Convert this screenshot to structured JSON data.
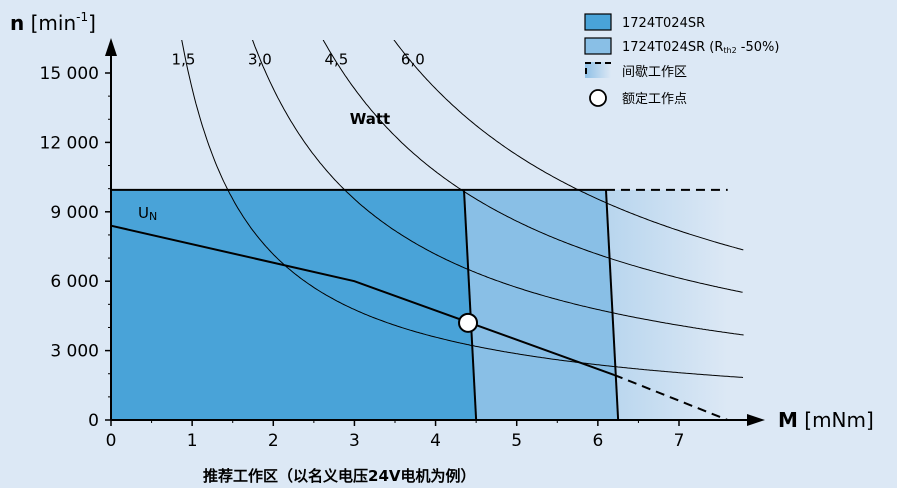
{
  "chart_data": {
    "type": "line",
    "x_axis": {
      "symbol": "M",
      "unit": "[mNm]",
      "min": 0,
      "max": 7.6,
      "ticks": [
        "0",
        "1",
        "2",
        "3",
        "4",
        "5",
        "6",
        "7"
      ]
    },
    "y_axis": {
      "symbol": "n",
      "unit_base": "[min",
      "unit_exp": "-1",
      "unit_close": "]",
      "min": 0,
      "max": 16000,
      "ticks": [
        {
          "value": 0,
          "label": "0"
        },
        {
          "value": 3000,
          "label": "3 000"
        },
        {
          "value": 6000,
          "label": "6 000"
        },
        {
          "value": 9000,
          "label": "9 000"
        },
        {
          "value": 12000,
          "label": "12 000"
        },
        {
          "value": 15000,
          "label": "15 000"
        }
      ]
    },
    "power_title": "Watt",
    "power_curves": [
      {
        "label": "1,5",
        "watts": 1.5
      },
      {
        "label": "3,0",
        "watts": 3.0
      },
      {
        "label": "4,5",
        "watts": 4.5
      },
      {
        "label": "6,0",
        "watts": 6.0
      }
    ],
    "regions": {
      "speed_limit": 9950,
      "continuous": [
        [
          0,
          0
        ],
        [
          0,
          9950
        ],
        [
          4.35,
          9950
        ],
        [
          4.5,
          0
        ]
      ],
      "extended": [
        [
          4.35,
          9950
        ],
        [
          6.1,
          9950
        ],
        [
          6.25,
          0
        ],
        [
          4.5,
          0
        ]
      ],
      "intermittent_extent": 7.6
    },
    "voltage_curve": {
      "label": "U",
      "label_sub": "N",
      "points": [
        [
          0,
          8400
        ],
        [
          3,
          6000
        ],
        [
          6.2,
          1950
        ]
      ],
      "dashed_extension": [
        [
          6.2,
          1950
        ],
        [
          7.6,
          0
        ]
      ]
    },
    "operating_point": {
      "x": 4.4,
      "y": 4200
    },
    "legend": [
      {
        "text": "1724T024SR",
        "color": "#49a3d8"
      },
      {
        "text": "1724T024SR",
        "paren_open": "(R",
        "paren_sub": "th2",
        "paren_close": " -50%)",
        "color": "#89bfe6"
      },
      {
        "text": "间歇工作区"
      },
      {
        "text": "额定工作点"
      }
    ],
    "footnote": "推荐工作区（以名义电压24V电机为例）"
  }
}
